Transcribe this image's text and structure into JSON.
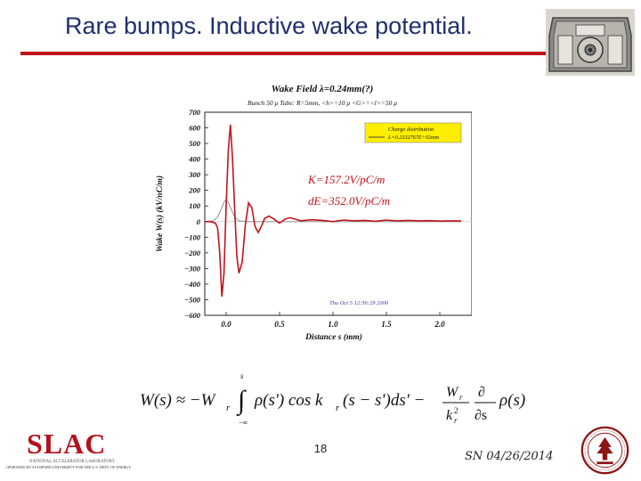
{
  "slide": {
    "title": "Rare bumps. Inductive wake potential.",
    "page_number": "18",
    "footer_date": "SN 04/26/2014"
  },
  "logo": {
    "name": "SLAC",
    "subtitle": "NATIONAL ACCELERATOR LABORATORY",
    "tagline": "OPERATED BY STANFORD UNIVERSITY FOR THE U.S. DEPT. OF ENERGY"
  },
  "colors": {
    "title": "#1f2f6e",
    "rule": "#c0141c",
    "wake_curve": "#c0141c",
    "charge_curve": "#999999",
    "legend_bg": "#ffee00",
    "annotation": "#c0141c",
    "timestamp": "#3a3a9a"
  },
  "chart_data": {
    "type": "line",
    "title": "Wake Field λ=0.24mm(?)",
    "subtitle": "Bunch 50 μ  Tube: R=5mm, <h>=10 μ <G>=<l>=50 μ",
    "xlabel": "Distance s (mm)",
    "ylabel": "Wake W(s) (kV/nC/m)",
    "xlim": [
      -0.2,
      2.3
    ],
    "ylim": [
      -600,
      700
    ],
    "xticks": [
      "0.0",
      "0.5",
      "1.0",
      "1.5",
      "2.0"
    ],
    "xtick_values": [
      0.0,
      0.5,
      1.0,
      1.5,
      2.0
    ],
    "yticks": [
      "700",
      "600",
      "500",
      "400",
      "300",
      "200",
      "100",
      "0",
      "−100",
      "−200",
      "−300",
      "−400",
      "−500",
      "−600"
    ],
    "ytick_values": [
      700,
      600,
      500,
      400,
      300,
      200,
      100,
      0,
      -100,
      -200,
      -300,
      -400,
      -500,
      -600
    ],
    "legend": {
      "placement": "top-right",
      "entry_title": "Charge distribution",
      "entry_label": "L=0.2332767E+02mm"
    },
    "annotations": [
      "K=157.2V/pC/m",
      "dE=352.0V/pC/m"
    ],
    "timestamp": "Thu Oct 5 12:56:29 2000",
    "series": [
      {
        "role": "wake",
        "x": [
          -0.2,
          -0.15,
          -0.1,
          -0.08,
          -0.06,
          -0.04,
          -0.02,
          0.0,
          0.02,
          0.04,
          0.06,
          0.08,
          0.1,
          0.12,
          0.15,
          0.18,
          0.21,
          0.24,
          0.27,
          0.3,
          0.33,
          0.36,
          0.4,
          0.45,
          0.5,
          0.55,
          0.6,
          0.7,
          0.8,
          0.9,
          1.0,
          1.1,
          1.2,
          1.3,
          1.4,
          1.5,
          1.6,
          1.7,
          1.8,
          1.9,
          2.0,
          2.1,
          2.2
        ],
        "y": [
          0,
          0,
          -10,
          -40,
          -200,
          -480,
          -330,
          100,
          450,
          620,
          400,
          80,
          -220,
          -330,
          -260,
          -20,
          120,
          90,
          -30,
          -70,
          -30,
          20,
          35,
          15,
          -10,
          15,
          25,
          5,
          12,
          8,
          0,
          10,
          5,
          8,
          2,
          10,
          4,
          8,
          5,
          6,
          3,
          5,
          4
        ]
      },
      {
        "role": "charge",
        "x": [
          -0.2,
          -0.12,
          -0.08,
          -0.04,
          -0.02,
          0.0,
          0.02,
          0.04,
          0.08,
          0.12,
          0.2,
          0.4,
          0.8,
          1.2,
          1.6,
          2.0,
          2.2
        ],
        "y": [
          0,
          5,
          30,
          90,
          125,
          140,
          125,
          90,
          30,
          5,
          0,
          0,
          0,
          0,
          0,
          0,
          0
        ]
      }
    ]
  }
}
